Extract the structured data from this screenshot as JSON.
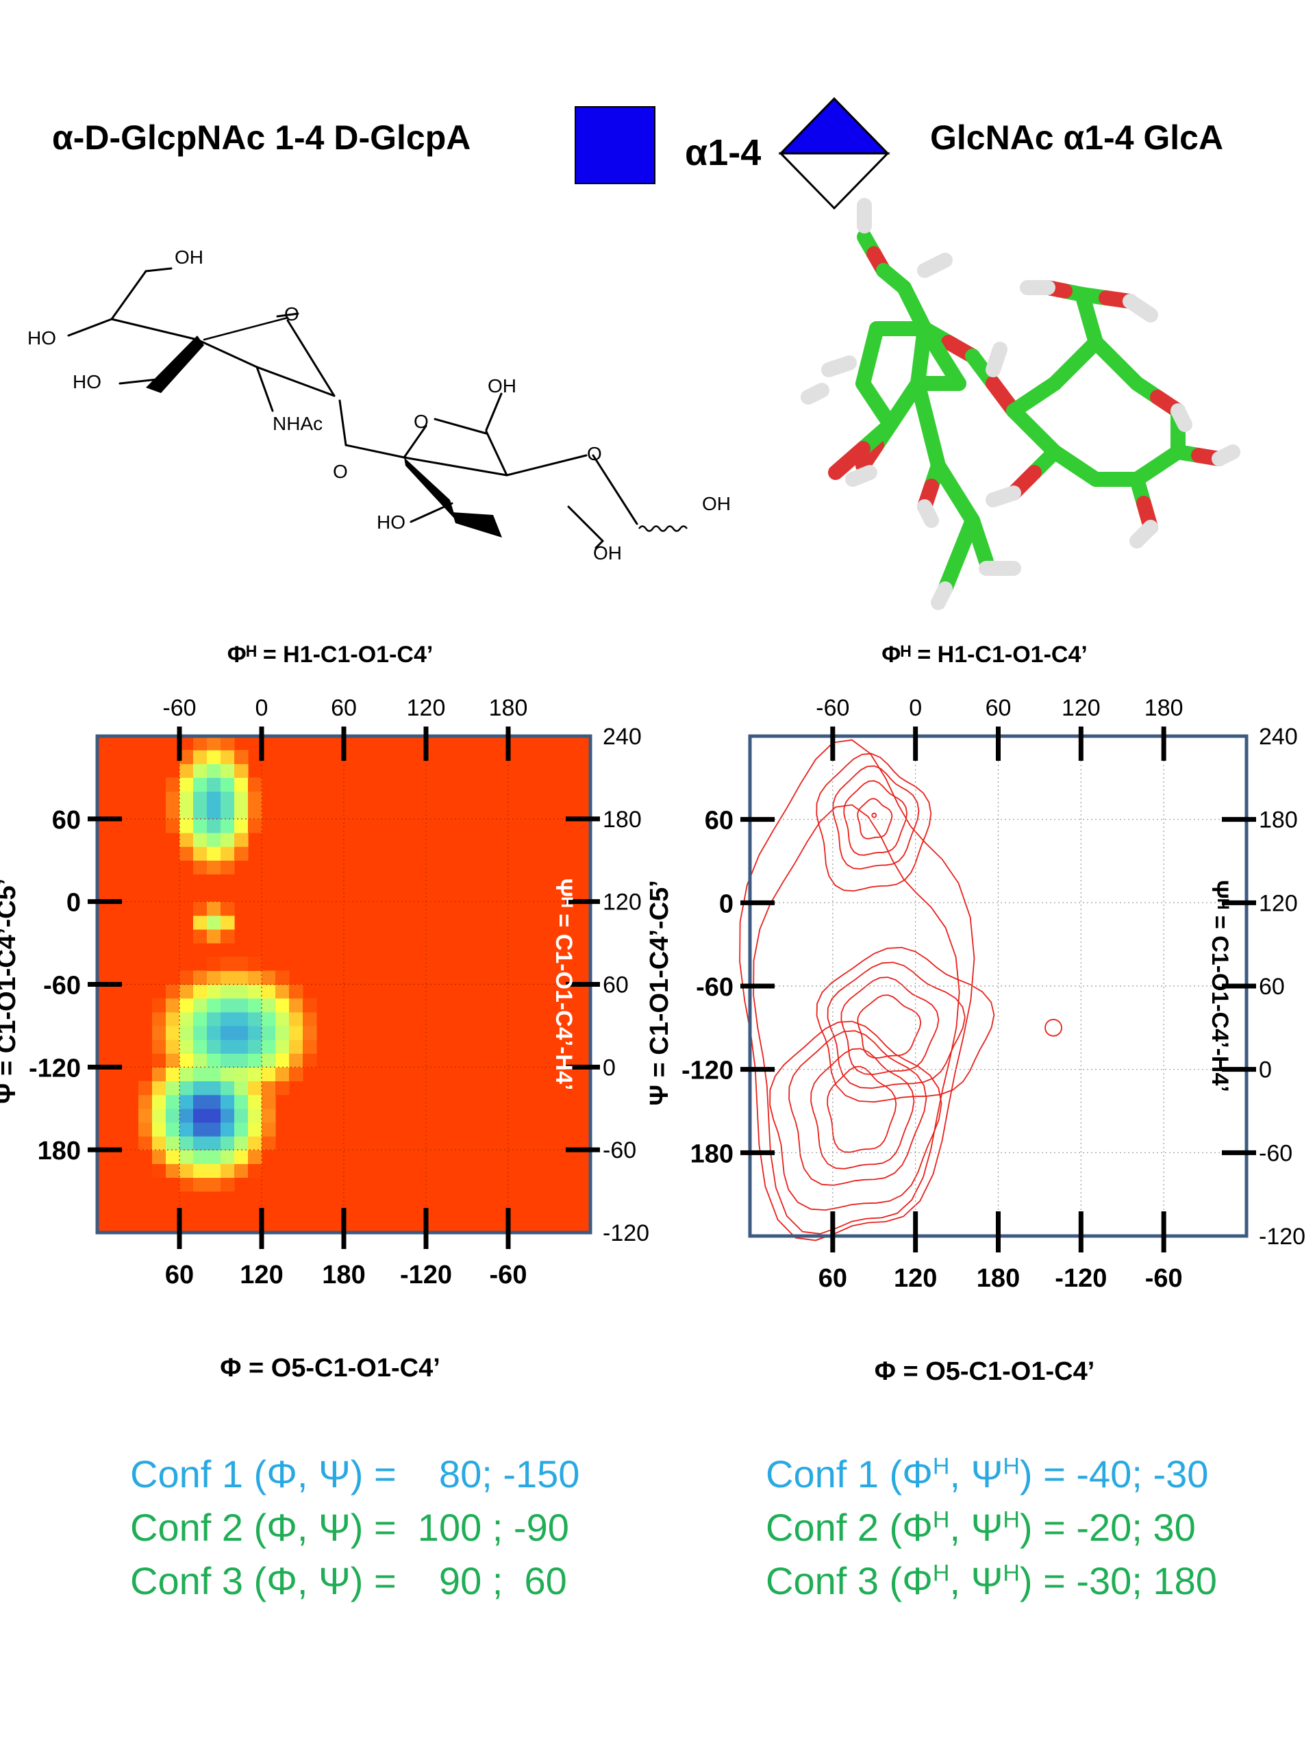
{
  "header": {
    "left_title": "α-D-GlcpNAc 1-4 D-GlcpA",
    "linkage": "α1-4",
    "right_title": "GlcNAc α1-4 GlcA",
    "symbol_colors": {
      "glcnac_square": "#0a00ef",
      "glca_diamond_top": "#0a00ef",
      "glca_diamond_bottom": "#ffffff"
    }
  },
  "structure": {
    "atom_labels": [
      "OH",
      "O",
      "HO",
      "HO",
      "NHAc",
      "O",
      "OH",
      "O",
      "O",
      "HO",
      "OH",
      "OH"
    ]
  },
  "model_3d": {
    "colors": {
      "carbon": "#33cc33",
      "oxygen": "#dd3333",
      "hydrogen": "#e0e0e0"
    }
  },
  "chart_data": [
    {
      "type": "heatmap",
      "title": "",
      "top_axis_title": "Φᴴ = H1-C1-O1-C4’",
      "top_ticks": [
        "-60",
        "0",
        "60",
        "120",
        "180"
      ],
      "bottom_axis_title": "Φ = O5-C1-O1-C4’",
      "bottom_ticks": [
        "60",
        "120",
        "180",
        "-120",
        "-60"
      ],
      "left_axis_title": "Ψ = C1-O1-C4’-C5’",
      "left_ticks": [
        "60",
        "0",
        "-60",
        "-120",
        "180"
      ],
      "right_axis_title": "Ψᴴ = C1-O1-C4’-H4’",
      "right_ticks": [
        "240",
        "180",
        "120",
        "60",
        "0",
        "-60",
        "-120"
      ],
      "phi_h_range": [
        -120,
        240
      ],
      "psi_h_range": [
        -120,
        240
      ],
      "grid": true,
      "colormap": [
        "#3344cc",
        "#40bcd8",
        "#7fffa0",
        "#ffff40",
        "#ff4000"
      ],
      "background_color": "#ff4000",
      "populated_regions": [
        {
          "phi_h": -35,
          "psi_h": 190,
          "rx": 25,
          "ry": 38,
          "depth": 0.78
        },
        {
          "phi_h": -20,
          "psi_h": 25,
          "rx": 45,
          "ry": 38,
          "depth": 0.82
        },
        {
          "phi_h": -40,
          "psi_h": -35,
          "rx": 36,
          "ry": 38,
          "depth": 1.0
        },
        {
          "phi_h": -35,
          "psi_h": 105,
          "rx": 16,
          "ry": 12,
          "depth": 0.45
        }
      ]
    },
    {
      "type": "contour",
      "title": "",
      "top_axis_title": "Φᴴ = H1-C1-O1-C4’",
      "top_ticks": [
        "-60",
        "0",
        "60",
        "120",
        "180"
      ],
      "bottom_axis_title": "Φ = O5-C1-O1-C4’",
      "bottom_ticks": [
        "60",
        "120",
        "180",
        "-120",
        "-60"
      ],
      "left_axis_title": "Ψ = C1-O1-C4’-C5’",
      "left_ticks": [
        "60",
        "0",
        "-60",
        "-120",
        "180"
      ],
      "right_axis_title": "Ψᴴ = C1-O1-C4’-H4’",
      "right_ticks": [
        "240",
        "180",
        "120",
        "60",
        "0",
        "-60",
        "-120"
      ],
      "phi_h_range": [
        -120,
        240
      ],
      "psi_h_range": [
        -120,
        240
      ],
      "grid": true,
      "contour_color": "#e8211b",
      "minima": [
        {
          "phi_h": -40,
          "psi_h": -30
        },
        {
          "phi_h": -20,
          "psi_h": 30
        },
        {
          "phi_h": -30,
          "psi_h": 180
        }
      ]
    }
  ],
  "conformers": {
    "left": [
      {
        "label": "Conf 1 (Φ, Ψ) =    80; -150",
        "color": "#29a9e1"
      },
      {
        "label": "Conf 2 (Φ, Ψ) =  100 ; -90",
        "color": "#1fae55"
      },
      {
        "label": "Conf 3 (Φ, Ψ) =    90 ;  60",
        "color": "#1fae55"
      }
    ],
    "right": [
      {
        "prefix": "Conf 1 (Φ",
        "mid": ", Ψ",
        "suffix": ") = -40; -30",
        "sup": "H",
        "color": "#29a9e1"
      },
      {
        "prefix": "Conf 2 (Φ",
        "mid": ", Ψ",
        "suffix": ") = -20; 30",
        "sup": "H",
        "color": "#1fae55"
      },
      {
        "prefix": "Conf 3 (Φ",
        "mid": ", Ψ",
        "suffix": ") = -30; 180",
        "sup": "H",
        "color": "#1fae55"
      }
    ]
  }
}
